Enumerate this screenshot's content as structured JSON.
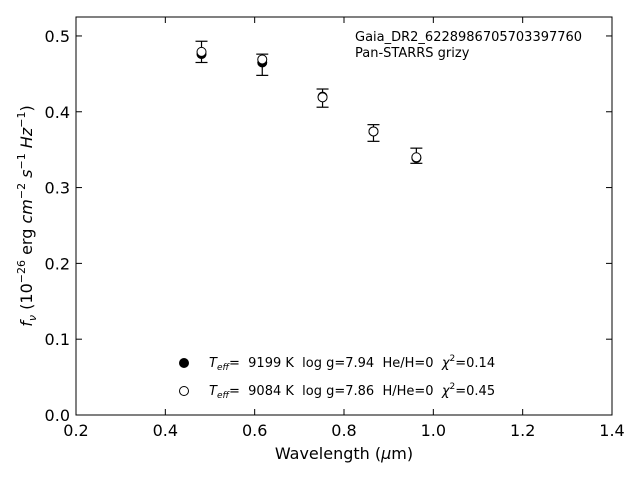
{
  "chart_data": {
    "type": "scatter",
    "xlabel_main": "Wavelength (",
    "xlabel_mu": "μ",
    "xlabel_unit": "m)",
    "ylabel_f": "f",
    "ylabel_sub": "ν",
    "ylabel_open": " (10",
    "ylabel_exp1": "−26",
    "ylabel_erg": " erg ",
    "ylabel_cm": "cm",
    "ylabel_exp2": "−2",
    "ylabel_s": " s",
    "ylabel_exp3": "−1",
    "ylabel_hz": " Hz",
    "ylabel_exp4": "−1",
    "ylabel_close": ")",
    "xlim": [
      0.2,
      1.4
    ],
    "ylim": [
      0.0,
      0.525
    ],
    "x_ticks": [
      "0.2",
      "0.4",
      "0.6",
      "0.8",
      "1.0",
      "1.2",
      "1.4"
    ],
    "x_tick_values": [
      0.2,
      0.4,
      0.6,
      0.8,
      1.0,
      1.2,
      1.4
    ],
    "y_ticks": [
      "0.0",
      "0.1",
      "0.2",
      "0.3",
      "0.4",
      "0.5"
    ],
    "y_tick_values": [
      0.0,
      0.1,
      0.2,
      0.3,
      0.4,
      0.5
    ],
    "annotation_line1": "Gaia_DR2_6228986705703397760",
    "annotation_line2": "Pan-STARRS grizy",
    "observed": {
      "x": [
        0.481,
        0.617,
        0.752,
        0.866,
        0.962
      ],
      "y": [
        0.479,
        0.462,
        0.418,
        0.372,
        0.342
      ],
      "err": [
        0.014,
        0.014,
        0.012,
        0.011,
        0.01
      ]
    },
    "series": [
      {
        "marker": "filled",
        "x": [
          0.481,
          0.617,
          0.752,
          0.866,
          0.962
        ],
        "y": [
          0.476,
          0.465,
          0.42,
          0.374,
          0.339
        ],
        "legend": {
          "t": "T",
          "sub": "eff",
          "rest": "=  9199 K  log g=7.94  He/H=0  ",
          "chi": "χ",
          "sup": "2",
          "val": "=0.14"
        }
      },
      {
        "marker": "open",
        "x": [
          0.481,
          0.617,
          0.752,
          0.866,
          0.962
        ],
        "y": [
          0.479,
          0.469,
          0.419,
          0.374,
          0.34
        ],
        "legend": {
          "t": "T",
          "sub": "eff",
          "rest": "=  9084 K  log g=7.86  H/He=0  ",
          "chi": "χ",
          "sup": "2",
          "val": "=0.45"
        }
      }
    ]
  }
}
